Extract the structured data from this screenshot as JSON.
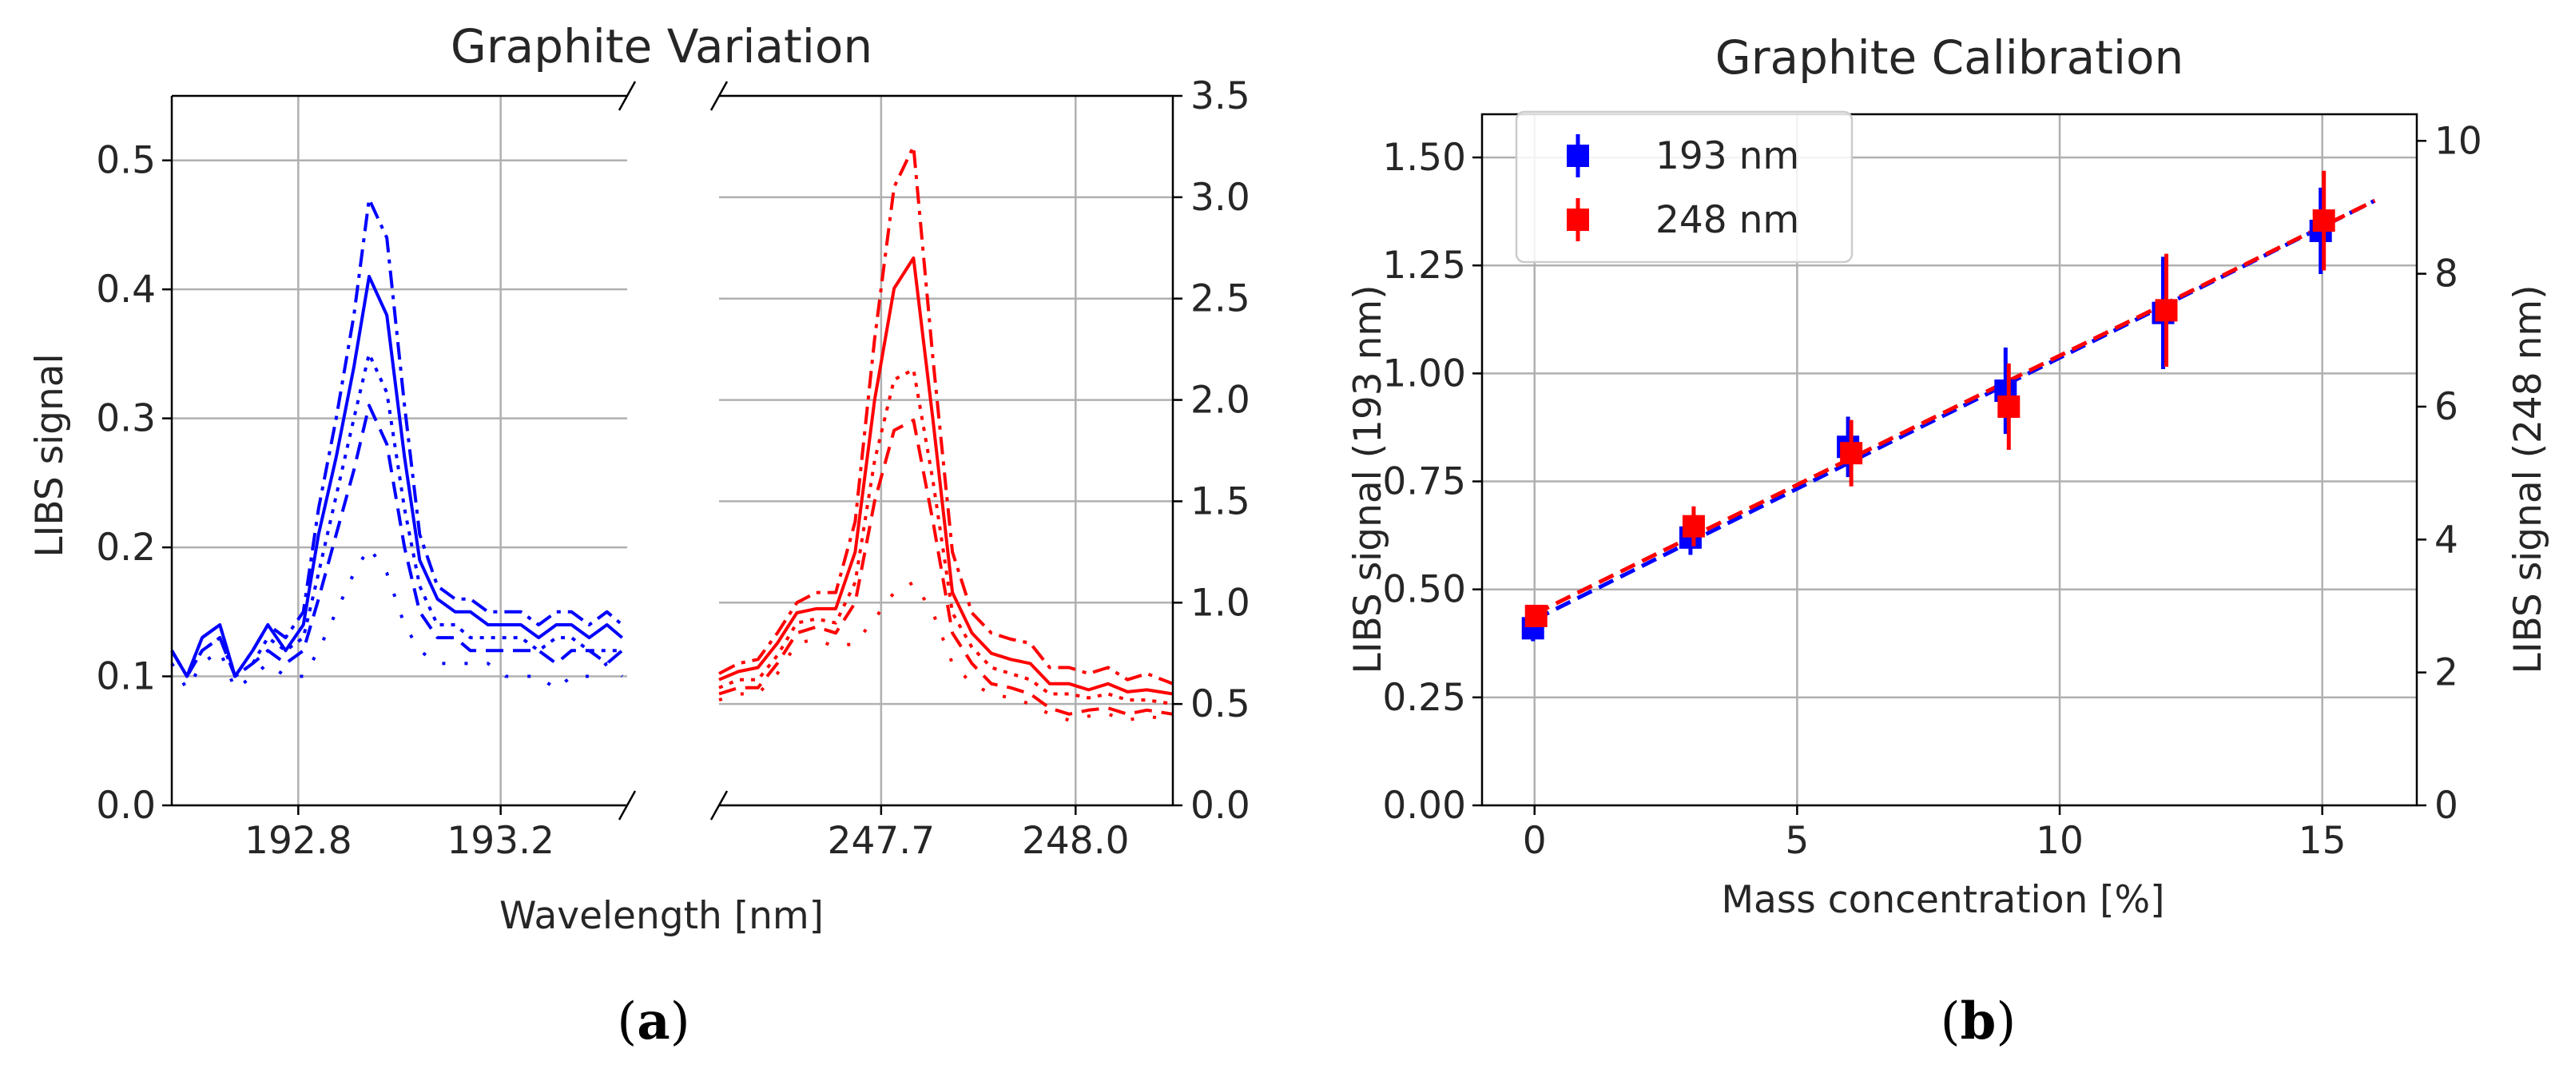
{
  "chart_data": [
    {
      "type": "line",
      "panel_label": "a",
      "title": "Graphite Variation",
      "xlabel": "Wavelength [nm]",
      "ylabel": "LIBS signal",
      "broken_x_axis": true,
      "left_panel": {
        "color": "#0000ff",
        "xlim": [
          192.55,
          193.45
        ],
        "ylim": [
          0.0,
          0.55
        ],
        "xticks": [
          192.8,
          193.2
        ],
        "xtick_labels": [
          "192.8",
          "193.2"
        ],
        "yticks": [
          0.0,
          0.1,
          0.2,
          0.3,
          0.4,
          0.5
        ],
        "ytick_labels": [
          "0.0",
          "0.1",
          "0.2",
          "0.3",
          "0.4",
          "0.5"
        ],
        "x": [
          192.55,
          192.58,
          192.61,
          192.645,
          192.675,
          192.71,
          192.74,
          192.775,
          192.81,
          192.84,
          192.875,
          192.91,
          192.94,
          192.975,
          193.01,
          193.04,
          193.075,
          193.11,
          193.14,
          193.175,
          193.21,
          193.24,
          193.275,
          193.31,
          193.34,
          193.375,
          193.41,
          193.44
        ],
        "series": [
          {
            "name": "dashdot",
            "style": "dashdot",
            "values": [
              0.12,
              0.1,
              0.13,
              0.14,
              0.1,
              0.12,
              0.14,
              0.13,
              0.15,
              0.23,
              0.3,
              0.38,
              0.47,
              0.44,
              0.31,
              0.21,
              0.17,
              0.16,
              0.16,
              0.15,
              0.15,
              0.15,
              0.14,
              0.15,
              0.15,
              0.14,
              0.15,
              0.14
            ]
          },
          {
            "name": "solid",
            "style": "solid",
            "values": [
              0.12,
              0.1,
              0.13,
              0.14,
              0.1,
              0.12,
              0.14,
              0.12,
              0.14,
              0.21,
              0.27,
              0.34,
              0.41,
              0.38,
              0.27,
              0.19,
              0.16,
              0.15,
              0.15,
              0.14,
              0.14,
              0.14,
              0.13,
              0.14,
              0.14,
              0.13,
              0.14,
              0.13
            ]
          },
          {
            "name": "dotted",
            "style": "dotted",
            "values": [
              0.12,
              0.1,
              0.12,
              0.13,
              0.1,
              0.11,
              0.13,
              0.12,
              0.13,
              0.18,
              0.24,
              0.3,
              0.35,
              0.32,
              0.23,
              0.17,
              0.14,
              0.14,
              0.13,
              0.13,
              0.13,
              0.13,
              0.12,
              0.13,
              0.13,
              0.12,
              0.12,
              0.12
            ]
          },
          {
            "name": "dashed",
            "style": "dashed",
            "values": [
              0.12,
              0.1,
              0.12,
              0.13,
              0.1,
              0.11,
              0.12,
              0.11,
              0.12,
              0.16,
              0.21,
              0.26,
              0.31,
              0.28,
              0.2,
              0.15,
              0.13,
              0.13,
              0.12,
              0.12,
              0.12,
              0.12,
              0.12,
              0.11,
              0.12,
              0.12,
              0.11,
              0.12
            ]
          },
          {
            "name": "sparse-dotted",
            "style": "sparse",
            "values": [
              0.11,
              0.09,
              0.11,
              0.12,
              0.09,
              0.1,
              0.11,
              0.1,
              0.1,
              0.12,
              0.15,
              0.18,
              0.2,
              0.18,
              0.14,
              0.12,
              0.11,
              0.11,
              0.11,
              0.11,
              0.1,
              0.1,
              0.1,
              0.09,
              0.1,
              0.1,
              0.11,
              0.1
            ]
          }
        ]
      },
      "right_panel": {
        "color": "#ff0000",
        "xlim": [
          247.45,
          248.15
        ],
        "ylim": [
          0.0,
          3.5
        ],
        "xticks": [
          247.7,
          248.0
        ],
        "xtick_labels": [
          "247.7",
          "248.0"
        ],
        "yticks": [
          0.0,
          0.5,
          1.0,
          1.5,
          2.0,
          2.5,
          3.0,
          3.5
        ],
        "ytick_labels": [
          "0.0",
          "0.5",
          "1.0",
          "1.5",
          "2.0",
          "2.5",
          "3.0",
          "3.5"
        ],
        "x": [
          247.45,
          247.48,
          247.51,
          247.54,
          247.57,
          247.6,
          247.63,
          247.66,
          247.69,
          247.72,
          247.75,
          247.78,
          247.81,
          247.84,
          247.87,
          247.9,
          247.93,
          247.96,
          247.99,
          248.02,
          248.05,
          248.08,
          248.11,
          248.15
        ],
        "series": [
          {
            "name": "dashdot",
            "style": "dashdot",
            "values": [
              0.65,
              0.7,
              0.72,
              0.85,
              1.0,
              1.05,
              1.05,
              1.4,
              2.3,
              3.05,
              3.25,
              2.2,
              1.25,
              0.95,
              0.85,
              0.82,
              0.8,
              0.68,
              0.68,
              0.65,
              0.68,
              0.62,
              0.65,
              0.6
            ]
          },
          {
            "name": "solid",
            "style": "solid",
            "values": [
              0.62,
              0.66,
              0.68,
              0.8,
              0.95,
              0.97,
              0.97,
              1.25,
              2.0,
              2.55,
              2.7,
              1.9,
              1.05,
              0.85,
              0.75,
              0.72,
              0.7,
              0.6,
              0.6,
              0.57,
              0.6,
              0.56,
              0.57,
              0.55
            ]
          },
          {
            "name": "dotted",
            "style": "dotted",
            "values": [
              0.58,
              0.62,
              0.62,
              0.74,
              0.9,
              0.92,
              0.9,
              1.1,
              1.7,
              2.1,
              2.15,
              1.6,
              0.95,
              0.78,
              0.68,
              0.65,
              0.62,
              0.55,
              0.55,
              0.53,
              0.55,
              0.52,
              0.52,
              0.5
            ]
          },
          {
            "name": "dashed",
            "style": "dashed",
            "values": [
              0.55,
              0.58,
              0.58,
              0.7,
              0.85,
              0.88,
              0.85,
              1.0,
              1.5,
              1.85,
              1.9,
              1.4,
              0.85,
              0.7,
              0.6,
              0.58,
              0.55,
              0.48,
              0.45,
              0.47,
              0.48,
              0.45,
              0.47,
              0.45
            ]
          },
          {
            "name": "sparse-dotted",
            "style": "sparse",
            "values": [
              0.52,
              0.55,
              0.55,
              0.65,
              0.8,
              0.82,
              0.78,
              0.8,
              0.92,
              1.05,
              1.1,
              0.95,
              0.7,
              0.6,
              0.55,
              0.53,
              0.5,
              0.45,
              0.42,
              0.44,
              0.45,
              0.42,
              0.44,
              0.42
            ]
          }
        ]
      }
    },
    {
      "type": "scatter",
      "panel_label": "b",
      "title": "Graphite Calibration",
      "xlabel": "Mass concentration [%]",
      "ylabel": "LIBS signal (193 nm)",
      "ylabel_right": "LIBS signal (248 nm)",
      "xlim": [
        -1.0,
        16.8
      ],
      "ylim": [
        0.0,
        1.6
      ],
      "ylim_right": [
        0.0,
        10.4
      ],
      "xticks": [
        0,
        5,
        10,
        15
      ],
      "xtick_labels": [
        "0",
        "5",
        "10",
        "15"
      ],
      "yticks": [
        0.0,
        0.25,
        0.5,
        0.75,
        1.0,
        1.25,
        1.5
      ],
      "ytick_labels": [
        "0.00",
        "0.25",
        "0.50",
        "0.75",
        "1.00",
        "1.25",
        "1.50"
      ],
      "yticks_right": [
        0,
        2,
        4,
        6,
        8,
        10
      ],
      "ytick_labels_right": [
        "0",
        "2",
        "4",
        "6",
        "8",
        "10"
      ],
      "legend_position": "top-left",
      "series": [
        {
          "name": "193 nm",
          "color": "#0000ff",
          "axis": "left",
          "x": [
            0,
            3,
            6,
            9,
            12,
            15
          ],
          "y": [
            0.41,
            0.62,
            0.83,
            0.96,
            1.14,
            1.33
          ],
          "yerr": [
            0.03,
            0.04,
            0.07,
            0.1,
            0.13,
            0.1
          ],
          "fit": {
            "x": [
              0,
              16
            ],
            "y": [
              0.43,
              1.4
            ]
          }
        },
        {
          "name": "248 nm",
          "color": "#ff0000",
          "axis": "right",
          "x": [
            0,
            3,
            6,
            9,
            12,
            15
          ],
          "y": [
            2.85,
            4.2,
            5.3,
            6.0,
            7.45,
            8.8
          ],
          "yerr": [
            0.15,
            0.3,
            0.5,
            0.65,
            0.85,
            0.75
          ],
          "fit": {
            "x": [
              0,
              16
            ],
            "y": [
              2.88,
              9.1
            ]
          }
        }
      ]
    }
  ],
  "captions": {
    "a": "a",
    "b": "b"
  }
}
